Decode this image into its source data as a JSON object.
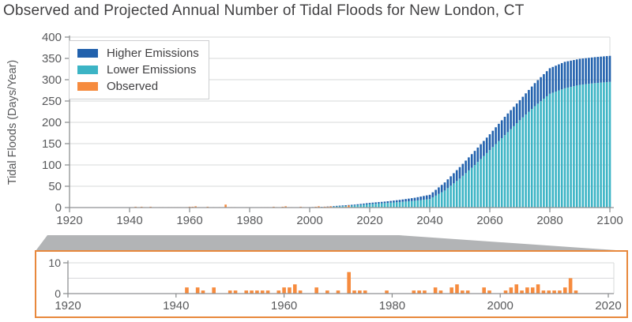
{
  "title": "Observed and Projected Annual Number of Tidal Floods for New London, CT",
  "colors": {
    "higher": "#2161ad",
    "lower": "#3cb4c5",
    "observed": "#f68b3e",
    "grid": "#d7d8da",
    "axis": "#8f9193",
    "tick_text": "#58595b",
    "title_text": "#414042",
    "trapezoid": "#b2b4b6",
    "inset_border": "#e8883c",
    "legend_border": "#cdced0"
  },
  "legend": {
    "items": [
      {
        "label": "Higher Emissions",
        "color_key": "higher"
      },
      {
        "label": "Lower Emissions",
        "color_key": "lower"
      },
      {
        "label": "Observed",
        "color_key": "observed"
      }
    ]
  },
  "chart_data": [
    {
      "type": "bar",
      "stacked": true,
      "title": "Observed and Projected Annual Number of Tidal Floods for New London, CT",
      "xlabel": "",
      "ylabel": "Tidal Floods (Days/Year)",
      "xlim": [
        1920,
        2100
      ],
      "ylim": [
        0,
        400
      ],
      "xticks": [
        1920,
        1940,
        1960,
        1980,
        2000,
        2020,
        2040,
        2060,
        2080,
        2100
      ],
      "yticks": [
        0,
        50,
        100,
        150,
        200,
        250,
        300,
        350,
        400
      ],
      "grid": "horizontal",
      "legend_position": "upper-left",
      "legend_entries": [
        "Higher Emissions",
        "Lower Emissions",
        "Observed"
      ],
      "observed_years_values": [
        [
          1942,
          2
        ],
        [
          1944,
          2
        ],
        [
          1945,
          1
        ],
        [
          1947,
          2
        ],
        [
          1950,
          1
        ],
        [
          1951,
          1
        ],
        [
          1953,
          1
        ],
        [
          1954,
          1
        ],
        [
          1955,
          1
        ],
        [
          1956,
          1
        ],
        [
          1957,
          1
        ],
        [
          1959,
          1
        ],
        [
          1960,
          2
        ],
        [
          1961,
          2
        ],
        [
          1962,
          3
        ],
        [
          1963,
          1
        ],
        [
          1966,
          2
        ],
        [
          1968,
          1
        ],
        [
          1970,
          1
        ],
        [
          1972,
          7
        ],
        [
          1973,
          1
        ],
        [
          1974,
          1
        ],
        [
          1975,
          1
        ],
        [
          1979,
          1
        ],
        [
          1984,
          1
        ],
        [
          1985,
          1
        ],
        [
          1986,
          1
        ],
        [
          1988,
          2
        ],
        [
          1989,
          1
        ],
        [
          1991,
          2
        ],
        [
          1992,
          3
        ],
        [
          1993,
          1
        ],
        [
          1994,
          1
        ],
        [
          1997,
          2
        ],
        [
          1998,
          1
        ],
        [
          2001,
          1
        ],
        [
          2002,
          2
        ],
        [
          2003,
          3
        ],
        [
          2004,
          1
        ],
        [
          2005,
          2
        ],
        [
          2006,
          2
        ],
        [
          2007,
          3
        ],
        [
          2008,
          1
        ],
        [
          2009,
          1
        ],
        [
          2010,
          1
        ],
        [
          2011,
          1
        ],
        [
          2012,
          2
        ],
        [
          2013,
          5
        ],
        [
          2014,
          1
        ]
      ],
      "projection_anchors": {
        "start_year": 2000,
        "step_years": 5,
        "lower_emissions": [
          0.5,
          1.5,
          3,
          5,
          8,
          10.5,
          13,
          16,
          20,
          40,
          68,
          100,
          135,
          170,
          205,
          238,
          267,
          280,
          288,
          292,
          295
        ],
        "higher_emissions_total": [
          1,
          2,
          4.5,
          7,
          11,
          14,
          18,
          23,
          30,
          59,
          95,
          133,
          172,
          213,
          252,
          292,
          327,
          342,
          349,
          353,
          356
        ]
      }
    },
    {
      "type": "bar",
      "title": "Observed detail (inset, highlighted by gray funnel from main chart)",
      "series_source": "observed_years_values from main chart",
      "xlim": [
        1920,
        2020
      ],
      "ylim": [
        0,
        10
      ],
      "xticks": [
        1920,
        1940,
        1960,
        1980,
        2000,
        2020
      ],
      "yticks": [
        0,
        10
      ],
      "gridlines_at": [
        5,
        10
      ],
      "border_color_key": "inset_border"
    }
  ]
}
